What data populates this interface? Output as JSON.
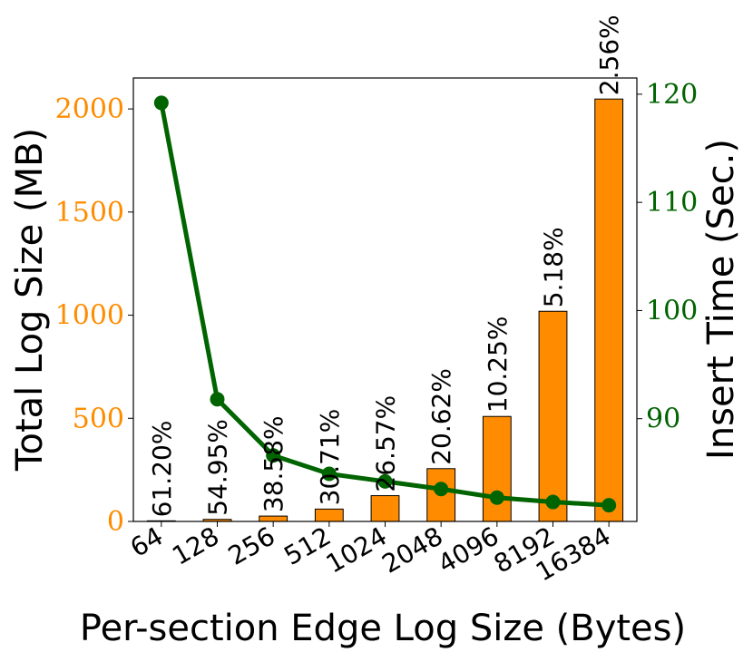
{
  "chart_data": {
    "type": "bar",
    "categories": [
      "64",
      "128",
      "256",
      "512",
      "1024",
      "2048",
      "4096",
      "8192",
      "16384"
    ],
    "xlabel": "Per-section Edge Log Size (Bytes)",
    "series": [
      {
        "name": "Total Log Size (MB)",
        "type": "bar",
        "axis": "left",
        "values": [
          3,
          10,
          26,
          60,
          125,
          256,
          509,
          1019,
          2048
        ],
        "labels": [
          "61.20%",
          "54.95%",
          "38.58%",
          "30.71%",
          "26.57%",
          "20.62%",
          "10.25%",
          "5.18%",
          "2.56%"
        ]
      },
      {
        "name": "Insert Time (Sec.)",
        "type": "line",
        "axis": "right",
        "values": [
          119.2,
          91.8,
          86.6,
          84.9,
          84.2,
          83.5,
          82.7,
          82.3,
          82.0
        ]
      }
    ],
    "ylabel_left": "Total Log Size (MB)",
    "ylabel_right": "Insert Time (Sec.)",
    "ylim_left": [
      0,
      2150
    ],
    "ylim_right": [
      80.5,
      121.5
    ],
    "yticks_left": [
      "0",
      "500",
      "1000",
      "1500",
      "2000"
    ],
    "yticks_right": [
      "90",
      "100",
      "110",
      "120"
    ],
    "colors": {
      "bar": "#ff8c00",
      "line": "#006400",
      "left_axis": "#ff8c00",
      "right_axis": "#006400",
      "frame": "#000000"
    }
  }
}
